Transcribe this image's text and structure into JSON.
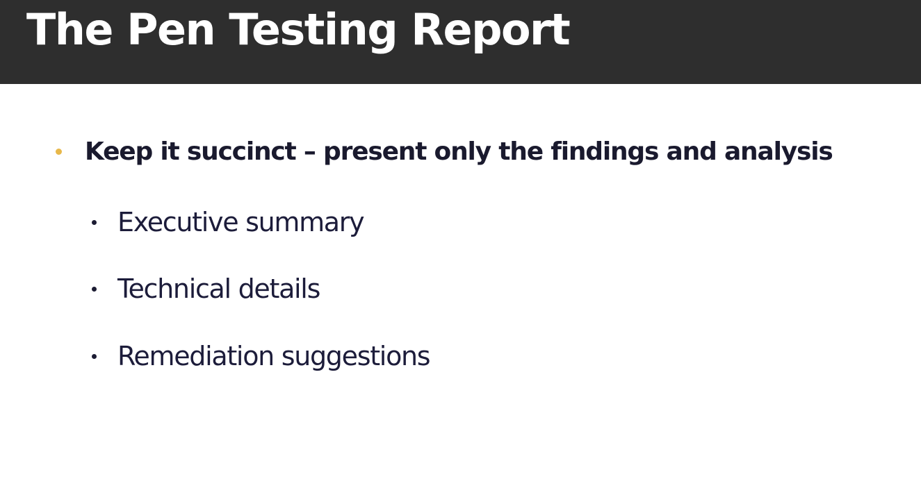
{
  "slide": {
    "title": "The Pen Testing Report",
    "main_bullet": "Keep it succinct – present only the findings and analysis",
    "sub_bullets": [
      "Executive summary",
      "Technical details",
      "Remediation suggestions"
    ]
  },
  "colors": {
    "title_bar": "#2e2e2e",
    "title_text": "#ffffff",
    "accent_bullet": "#e8b84a",
    "body_text": "#1c1c33",
    "background": "#ffffff"
  }
}
